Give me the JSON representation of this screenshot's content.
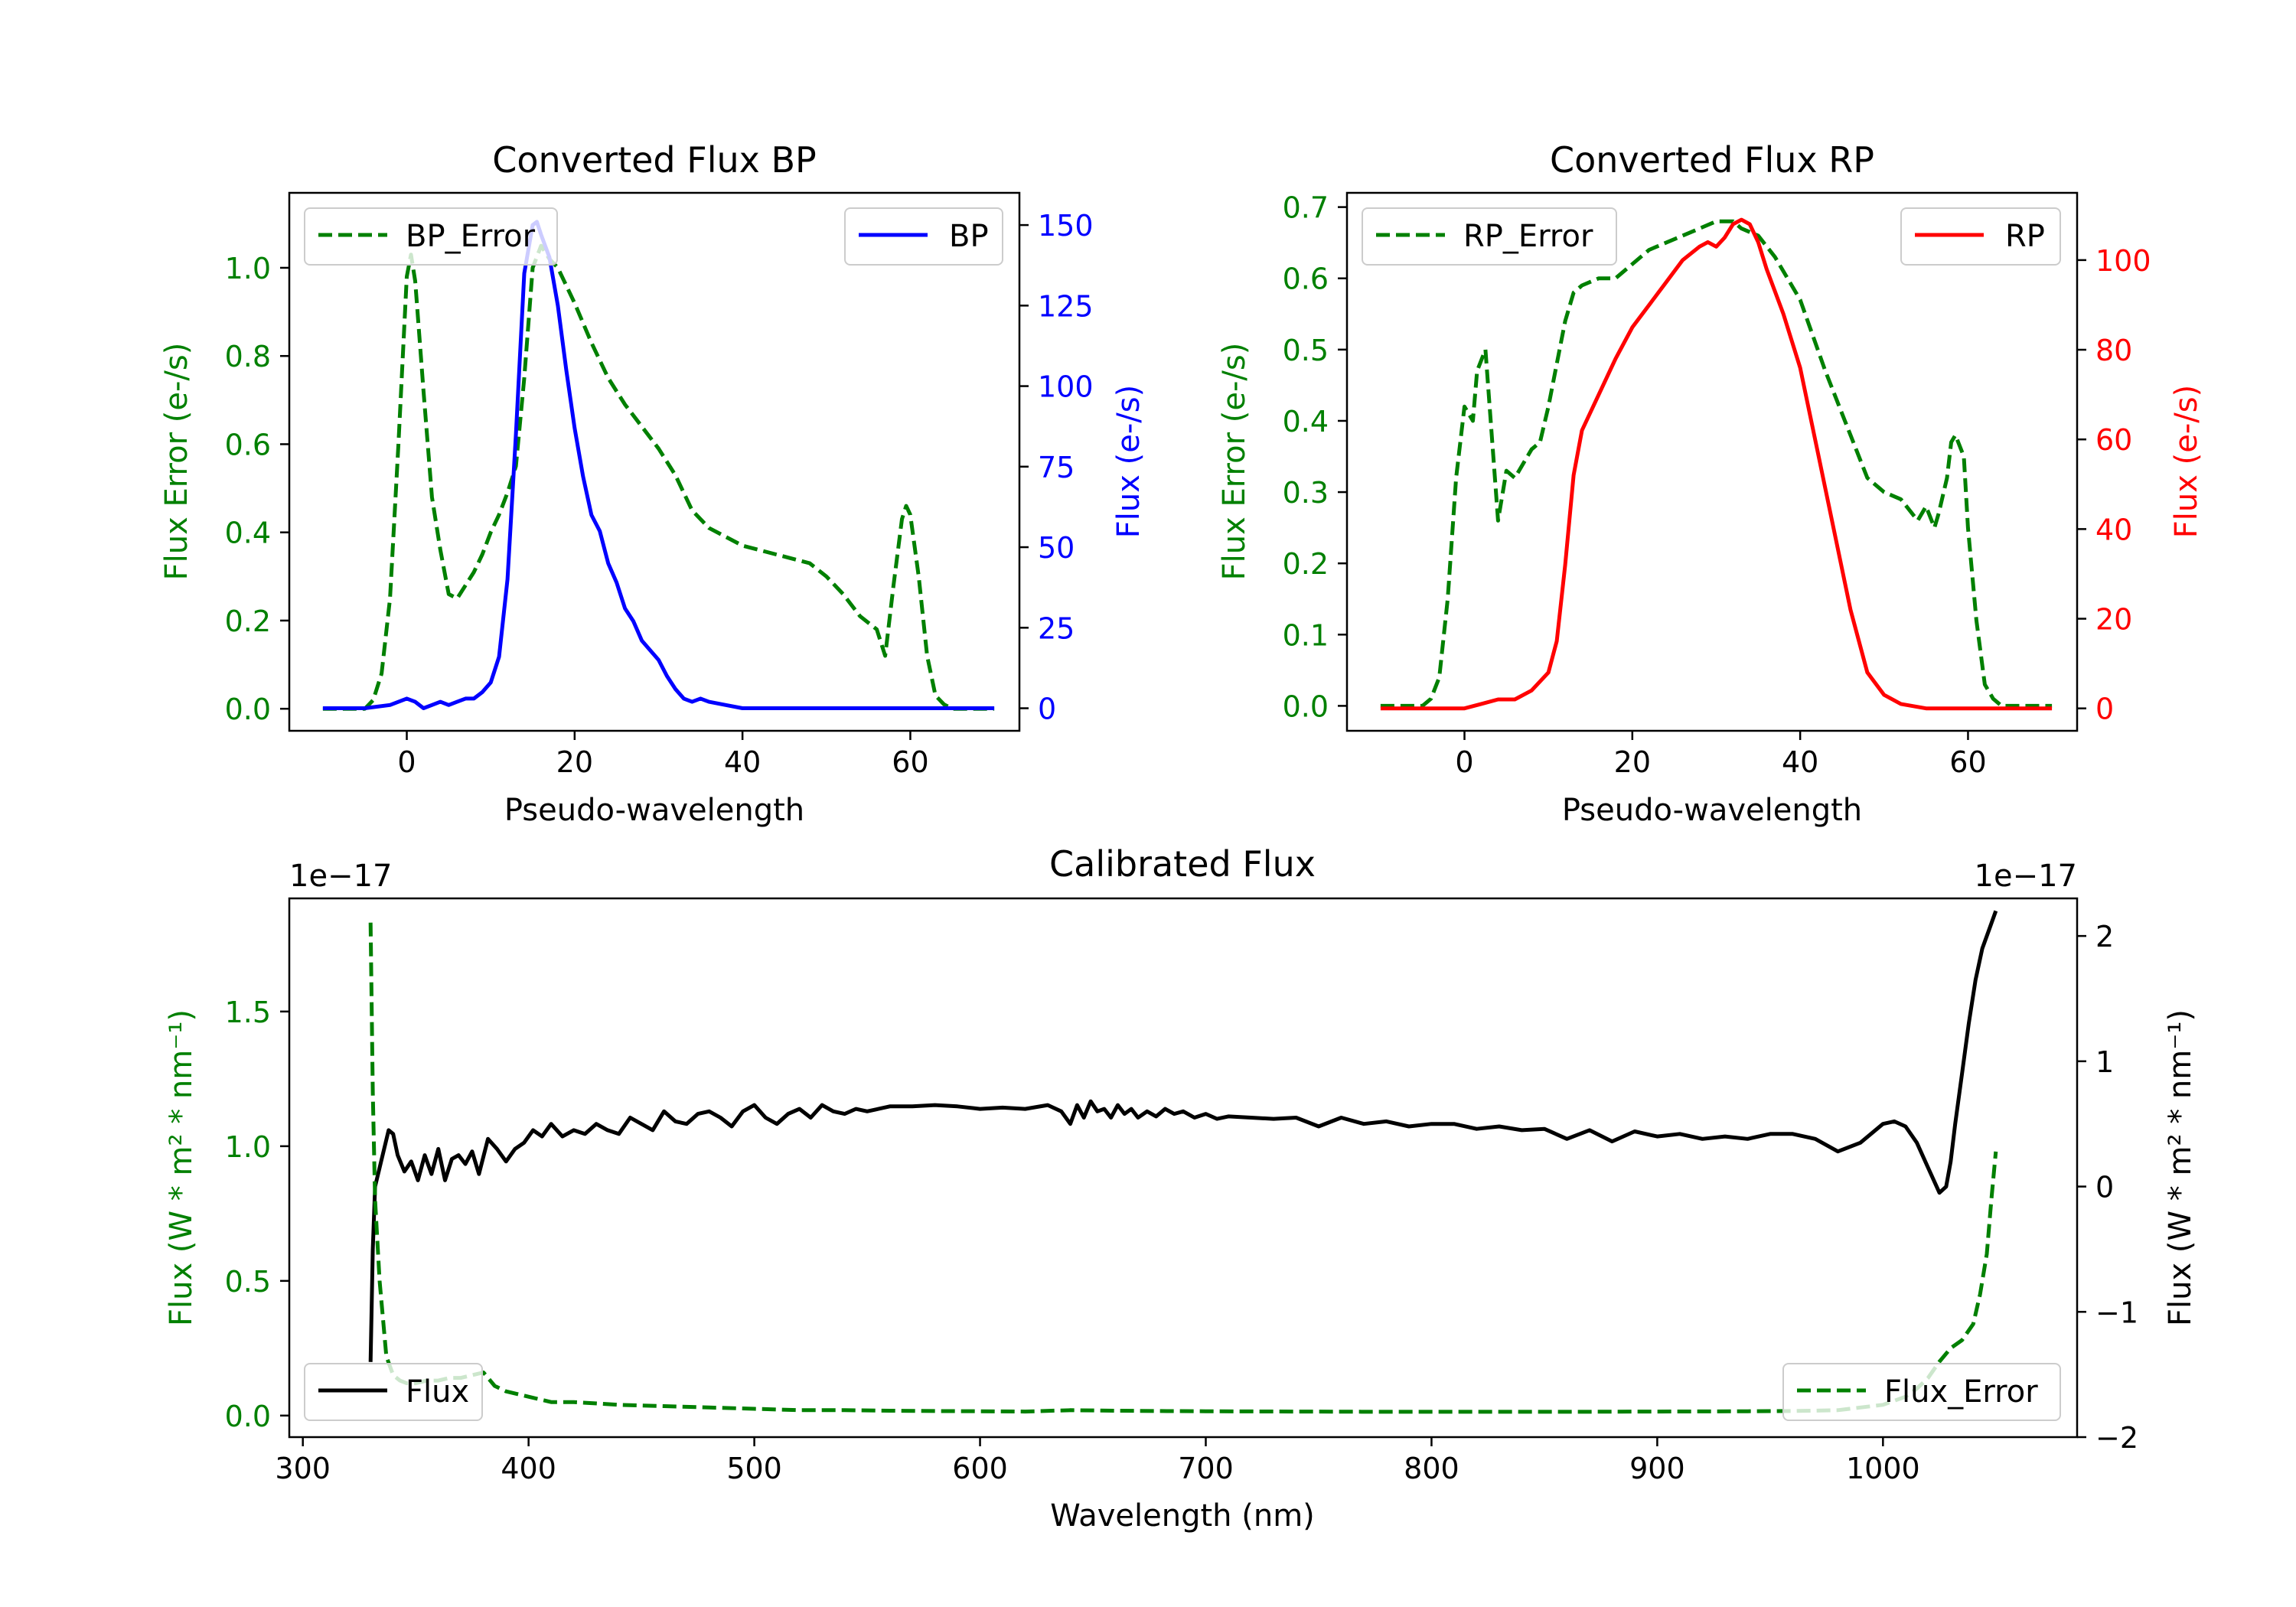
{
  "colors": {
    "green": "#008000",
    "blue": "#0000ff",
    "red": "#ff0000",
    "black": "#000000",
    "axis": "#000000"
  },
  "chart_data": [
    {
      "id": "bp",
      "type": "line",
      "title": "Converted Flux BP",
      "xlabel": "Pseudo-wavelength",
      "ylabel_left": "Flux Error (e-/s)",
      "ylabel_right": "Flux (e-/s)",
      "xlim": [
        -14,
        73
      ],
      "ylim_left": [
        -0.05,
        1.17
      ],
      "ylim_right": [
        -7,
        160
      ],
      "xticks": [
        0,
        20,
        40,
        60
      ],
      "yticks_left": [
        0.0,
        0.2,
        0.4,
        0.6,
        0.8,
        1.0
      ],
      "yticks_right": [
        0,
        25,
        50,
        75,
        100,
        125,
        150
      ],
      "legend_left": "BP_Error",
      "legend_right": "BP",
      "series": [
        {
          "name": "BP_Error",
          "axis": "left",
          "color": "green",
          "style": "dashed",
          "x": [
            -10,
            -5,
            -4,
            -3,
            -2,
            -1,
            0,
            0.5,
            1,
            2,
            3,
            4,
            5,
            6,
            7,
            8,
            9,
            10,
            11,
            12,
            13,
            14,
            15,
            16,
            17,
            18,
            20,
            22,
            24,
            26,
            28,
            30,
            32,
            34,
            36,
            40,
            44,
            48,
            50,
            52,
            54,
            56,
            57,
            58,
            59,
            59.5,
            60,
            61,
            62,
            63,
            64,
            65,
            66,
            70
          ],
          "y": [
            0.0,
            0.0,
            0.02,
            0.08,
            0.25,
            0.6,
            0.98,
            1.03,
            0.97,
            0.72,
            0.48,
            0.36,
            0.26,
            0.25,
            0.28,
            0.31,
            0.35,
            0.4,
            0.44,
            0.49,
            0.55,
            0.75,
            1.0,
            1.05,
            1.02,
            1.0,
            0.92,
            0.83,
            0.75,
            0.69,
            0.64,
            0.59,
            0.53,
            0.45,
            0.41,
            0.37,
            0.35,
            0.33,
            0.3,
            0.26,
            0.21,
            0.18,
            0.12,
            0.28,
            0.43,
            0.46,
            0.44,
            0.3,
            0.12,
            0.03,
            0.01,
            0.0,
            0.0,
            0.0
          ]
        },
        {
          "name": "BP",
          "axis": "right",
          "color": "blue",
          "style": "solid",
          "x": [
            -10,
            -5,
            -2,
            0,
            1,
            2,
            3,
            4,
            5,
            6,
            7,
            8,
            9,
            10,
            11,
            12,
            13,
            14,
            15,
            15.5,
            16,
            17,
            18,
            19,
            20,
            21,
            22,
            23,
            24,
            25,
            26,
            27,
            28,
            29,
            30,
            31,
            32,
            33,
            34,
            35,
            36,
            38,
            40,
            44,
            48,
            50,
            52,
            56,
            60,
            64,
            70
          ],
          "y": [
            0,
            0,
            1,
            3,
            2,
            0,
            1,
            2,
            1,
            2,
            3,
            3,
            5,
            8,
            16,
            40,
            85,
            135,
            150,
            151,
            147,
            140,
            125,
            105,
            87,
            72,
            60,
            55,
            45,
            39,
            31,
            27,
            21,
            18,
            15,
            10,
            6,
            3,
            2,
            3,
            2,
            1,
            0,
            0,
            0,
            0,
            0,
            0,
            0,
            0,
            0
          ]
        }
      ]
    },
    {
      "id": "rp",
      "type": "line",
      "title": "Converted Flux RP",
      "xlabel": "Pseudo-wavelength",
      "ylabel_left": "Flux Error (e-/s)",
      "ylabel_right": "Flux (e-/s)",
      "xlim": [
        -14,
        73
      ],
      "ylim_left": [
        -0.035,
        0.72
      ],
      "ylim_right": [
        -5,
        115
      ],
      "xticks": [
        0,
        20,
        40,
        60
      ],
      "yticks_left": [
        0.0,
        0.1,
        0.2,
        0.3,
        0.4,
        0.5,
        0.6,
        0.7
      ],
      "yticks_right": [
        0,
        20,
        40,
        60,
        80,
        100
      ],
      "legend_left": "RP_Error",
      "legend_right": "RP",
      "series": [
        {
          "name": "RP_Error",
          "axis": "left",
          "color": "green",
          "style": "dashed",
          "x": [
            -10,
            -5,
            -4,
            -3,
            -2,
            -1,
            0,
            1,
            1.5,
            2.5,
            3,
            4,
            5,
            6,
            8,
            9,
            10,
            11,
            12,
            13,
            14,
            16,
            18,
            20,
            22,
            24,
            26,
            28,
            30,
            32,
            33,
            35,
            37,
            40,
            43,
            46,
            48,
            50,
            52,
            54,
            55,
            56,
            56.5,
            57.5,
            58,
            58.5,
            59.5,
            60,
            61,
            62,
            63,
            64,
            65,
            70
          ],
          "y": [
            0.0,
            0.0,
            0.01,
            0.04,
            0.15,
            0.32,
            0.42,
            0.4,
            0.47,
            0.5,
            0.42,
            0.26,
            0.33,
            0.32,
            0.36,
            0.37,
            0.42,
            0.48,
            0.54,
            0.58,
            0.59,
            0.6,
            0.6,
            0.62,
            0.64,
            0.65,
            0.66,
            0.67,
            0.68,
            0.68,
            0.67,
            0.66,
            0.63,
            0.57,
            0.47,
            0.38,
            0.32,
            0.3,
            0.29,
            0.26,
            0.28,
            0.25,
            0.27,
            0.32,
            0.37,
            0.38,
            0.35,
            0.25,
            0.12,
            0.03,
            0.01,
            0.0,
            0.0,
            0.0
          ]
        },
        {
          "name": "RP",
          "axis": "right",
          "color": "red",
          "style": "solid",
          "x": [
            -10,
            -2,
            0,
            2,
            4,
            6,
            8,
            10,
            11,
            12,
            13,
            14,
            16,
            18,
            20,
            22,
            24,
            26,
            28,
            29,
            30,
            31,
            32,
            33,
            34,
            35,
            36,
            38,
            40,
            42,
            44,
            46,
            48,
            50,
            52,
            55,
            58,
            62,
            70
          ],
          "y": [
            0,
            0,
            0,
            1,
            2,
            2,
            4,
            8,
            15,
            32,
            52,
            62,
            70,
            78,
            85,
            90,
            95,
            100,
            103,
            104,
            103,
            105,
            108,
            109,
            108,
            104,
            98,
            88,
            76,
            58,
            40,
            22,
            8,
            3,
            1,
            0,
            0,
            0,
            0
          ]
        }
      ]
    },
    {
      "id": "cal",
      "type": "line",
      "title": "Calibrated Flux",
      "xlabel": "Wavelength (nm)",
      "ylabel_left": "Flux (W * m² * nm⁻¹)",
      "ylabel_right": "Flux (W * m² * nm⁻¹)",
      "offset_left": "1e−17",
      "offset_right": "1e−17",
      "xlim": [
        294,
        1086
      ],
      "ylim_left": [
        -0.08,
        1.92
      ],
      "ylim_right": [
        -2.0,
        2.3
      ],
      "xticks": [
        300,
        400,
        500,
        600,
        700,
        800,
        900,
        1000
      ],
      "yticks_left": [
        0.0,
        0.5,
        1.0,
        1.5
      ],
      "yticks_right": [
        -2,
        -1,
        0,
        1,
        2
      ],
      "legend_left": "Flux",
      "legend_right": "Flux_Error",
      "series": [
        {
          "name": "Flux",
          "axis": "right",
          "color": "black",
          "style": "solid",
          "x": [
            330,
            331,
            332,
            334,
            336,
            338,
            340,
            342,
            345,
            348,
            351,
            354,
            357,
            360,
            363,
            366,
            369,
            372,
            375,
            378,
            382,
            386,
            390,
            394,
            398,
            402,
            406,
            410,
            415,
            420,
            425,
            430,
            435,
            440,
            445,
            450,
            455,
            460,
            465,
            470,
            475,
            480,
            485,
            490,
            495,
            500,
            505,
            510,
            515,
            520,
            525,
            530,
            535,
            540,
            545,
            550,
            555,
            560,
            570,
            580,
            590,
            600,
            610,
            620,
            630,
            636,
            640,
            643,
            646,
            649,
            652,
            655,
            658,
            661,
            664,
            667,
            670,
            674,
            678,
            682,
            686,
            690,
            695,
            700,
            705,
            710,
            720,
            730,
            740,
            750,
            760,
            770,
            780,
            790,
            800,
            810,
            820,
            830,
            840,
            850,
            860,
            870,
            880,
            890,
            900,
            910,
            920,
            930,
            940,
            950,
            960,
            970,
            980,
            990,
            1000,
            1005,
            1010,
            1015,
            1020,
            1025,
            1028,
            1030,
            1032,
            1035,
            1038,
            1041,
            1044,
            1047,
            1050
          ],
          "y": [
            -1.4,
            -0.5,
            0.0,
            0.15,
            0.3,
            0.45,
            0.42,
            0.25,
            0.12,
            0.2,
            0.05,
            0.25,
            0.1,
            0.3,
            0.05,
            0.22,
            0.25,
            0.18,
            0.28,
            0.1,
            0.38,
            0.3,
            0.2,
            0.3,
            0.35,
            0.45,
            0.4,
            0.5,
            0.4,
            0.45,
            0.42,
            0.5,
            0.45,
            0.42,
            0.55,
            0.5,
            0.45,
            0.6,
            0.52,
            0.5,
            0.58,
            0.6,
            0.55,
            0.48,
            0.6,
            0.65,
            0.55,
            0.5,
            0.58,
            0.62,
            0.55,
            0.65,
            0.6,
            0.58,
            0.62,
            0.6,
            0.62,
            0.64,
            0.64,
            0.65,
            0.64,
            0.62,
            0.63,
            0.62,
            0.65,
            0.6,
            0.5,
            0.65,
            0.55,
            0.68,
            0.6,
            0.62,
            0.55,
            0.65,
            0.58,
            0.62,
            0.55,
            0.6,
            0.56,
            0.62,
            0.58,
            0.6,
            0.55,
            0.58,
            0.54,
            0.56,
            0.55,
            0.54,
            0.55,
            0.48,
            0.55,
            0.5,
            0.52,
            0.48,
            0.5,
            0.5,
            0.46,
            0.48,
            0.45,
            0.46,
            0.38,
            0.45,
            0.36,
            0.44,
            0.4,
            0.42,
            0.38,
            0.4,
            0.38,
            0.42,
            0.42,
            0.38,
            0.28,
            0.35,
            0.5,
            0.52,
            0.48,
            0.35,
            0.15,
            -0.05,
            0.0,
            0.2,
            0.5,
            0.9,
            1.3,
            1.65,
            1.9,
            2.05,
            2.2
          ]
        },
        {
          "name": "Flux_Error",
          "axis": "left",
          "color": "green",
          "style": "dashed",
          "x": [
            330,
            331,
            332,
            334,
            337,
            340,
            343,
            346,
            350,
            355,
            360,
            365,
            370,
            375,
            380,
            385,
            390,
            395,
            400,
            410,
            420,
            440,
            460,
            480,
            500,
            520,
            540,
            560,
            580,
            600,
            620,
            640,
            660,
            680,
            700,
            740,
            780,
            820,
            860,
            900,
            940,
            960,
            980,
            1000,
            1010,
            1015,
            1020,
            1025,
            1030,
            1035,
            1040,
            1043,
            1046,
            1048,
            1050
          ],
          "y": [
            1.83,
            1.2,
            0.8,
            0.5,
            0.22,
            0.15,
            0.13,
            0.12,
            0.12,
            0.13,
            0.13,
            0.14,
            0.14,
            0.15,
            0.16,
            0.11,
            0.09,
            0.08,
            0.07,
            0.05,
            0.05,
            0.04,
            0.035,
            0.03,
            0.025,
            0.02,
            0.02,
            0.018,
            0.017,
            0.016,
            0.015,
            0.02,
            0.018,
            0.017,
            0.016,
            0.015,
            0.014,
            0.014,
            0.014,
            0.015,
            0.016,
            0.017,
            0.02,
            0.04,
            0.07,
            0.1,
            0.14,
            0.2,
            0.25,
            0.28,
            0.34,
            0.45,
            0.6,
            0.8,
            0.98
          ]
        }
      ]
    }
  ]
}
